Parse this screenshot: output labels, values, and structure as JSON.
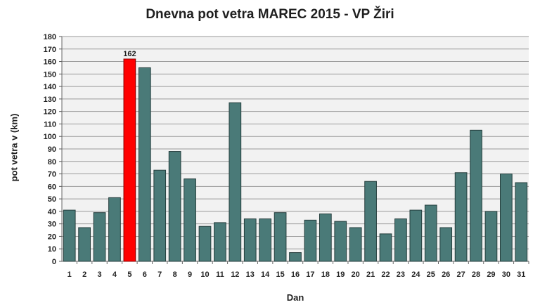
{
  "chart_data": {
    "type": "bar",
    "title": "Dnevna pot vetra MAREC 2015 - VP Žiri",
    "xlabel": "Dan",
    "ylabel": "pot vetra  v (km)",
    "ylim": [
      0,
      180
    ],
    "ytick_step": 10,
    "grid": true,
    "categories": [
      "1",
      "2",
      "3",
      "4",
      "5",
      "6",
      "7",
      "8",
      "9",
      "10",
      "11",
      "12",
      "13",
      "14",
      "15",
      "16",
      "17",
      "18",
      "19",
      "20",
      "21",
      "22",
      "23",
      "24",
      "25",
      "26",
      "27",
      "28",
      "29",
      "30",
      "31"
    ],
    "values": [
      41,
      27,
      39,
      51,
      162,
      155,
      73,
      88,
      66,
      28,
      31,
      127,
      34,
      34,
      39,
      7,
      33,
      38,
      32,
      27,
      64,
      22,
      34,
      41,
      45,
      27,
      71,
      105,
      40,
      70,
      63
    ],
    "highlight": {
      "index": 4,
      "label": "162"
    },
    "colors": {
      "bar_fill": "#4a7a78",
      "bar_stroke": "#243d3c",
      "highlight_fill": "#ff0000",
      "highlight_stroke": "#8a0000",
      "plot_background": "#f2f2f2",
      "grid": "#9a9a9a"
    }
  }
}
